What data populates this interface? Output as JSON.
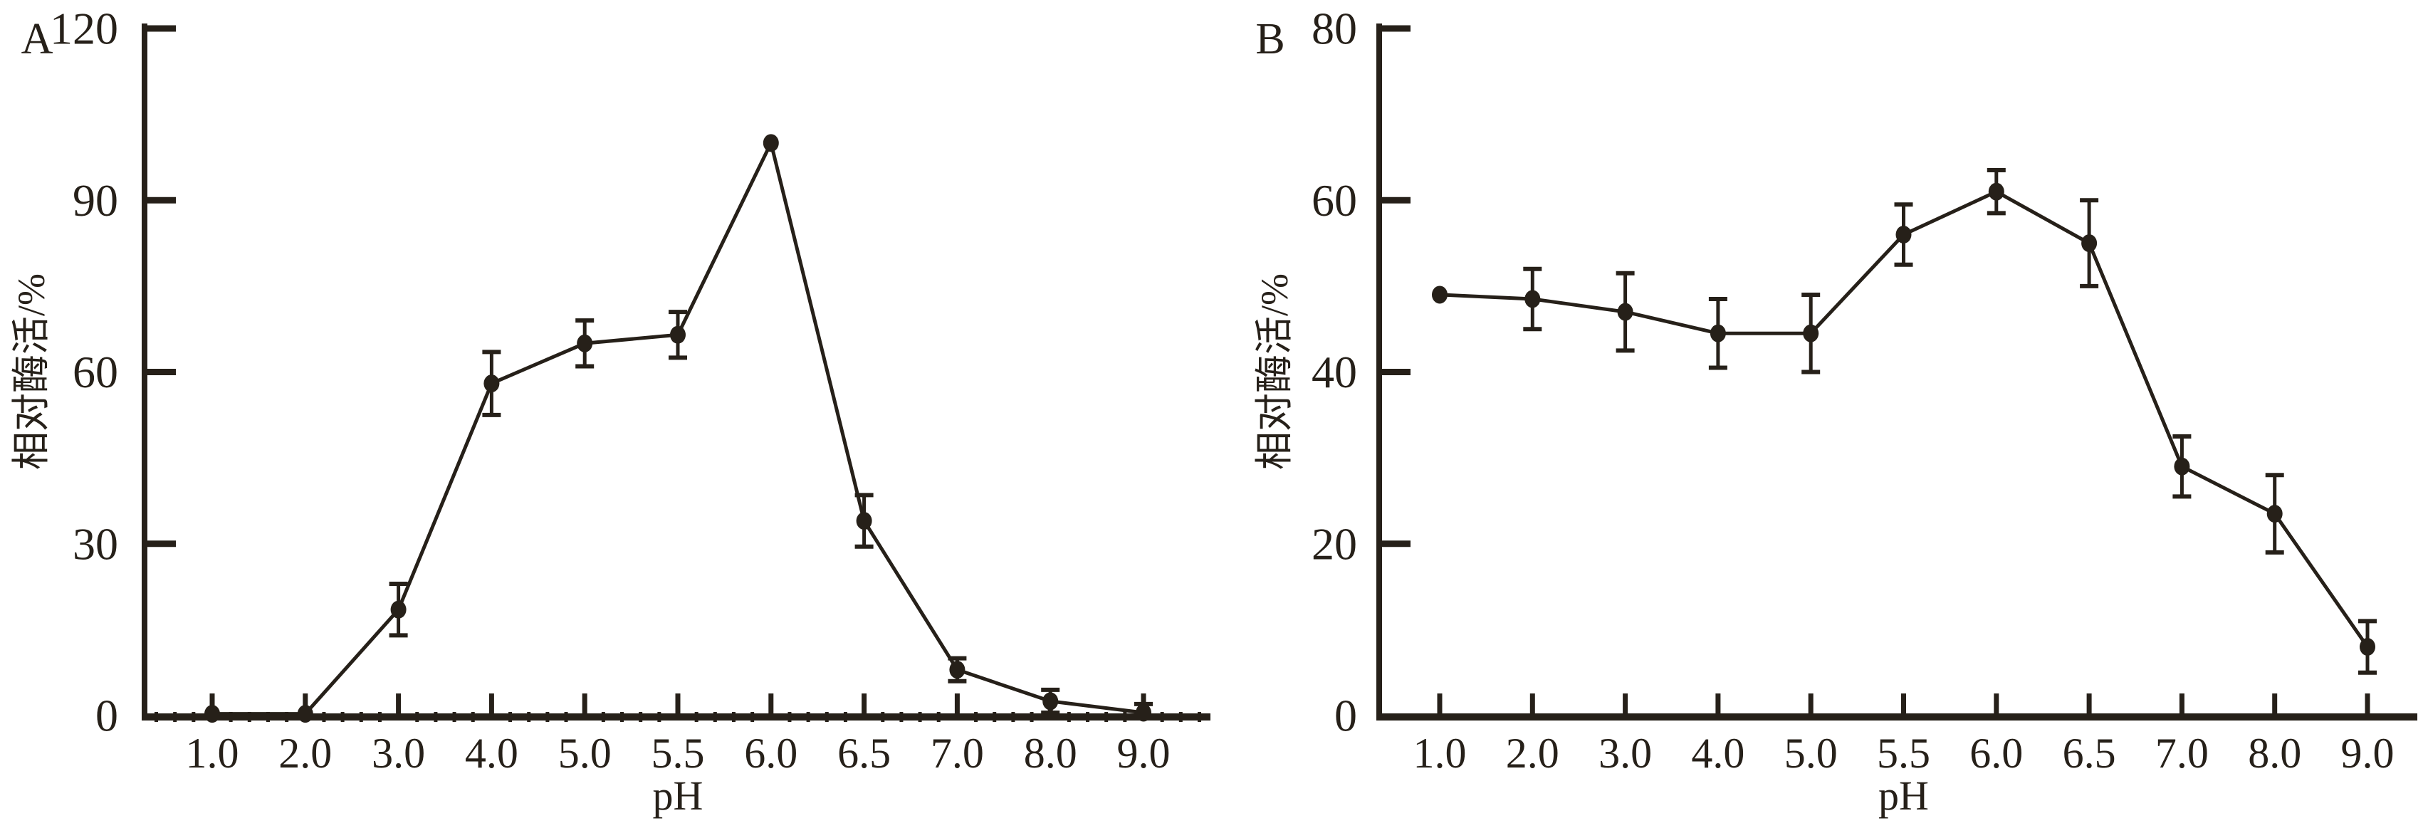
{
  "figure": {
    "background": "#ffffff",
    "ink_color": "#262019",
    "panel_labels": [
      "A",
      "B"
    ]
  },
  "chart_data": [
    {
      "type": "line",
      "panel_label": "A",
      "title": "",
      "xlabel": "pH",
      "ylabel": "相对酶活/%",
      "x_categories": [
        "1.0",
        "2.0",
        "3.0",
        "4.0",
        "5.0",
        "5.5",
        "6.0",
        "6.5",
        "7.0",
        "8.0",
        "9.0"
      ],
      "ylim": [
        0,
        120
      ],
      "yticks": [
        0,
        30,
        60,
        90,
        120
      ],
      "x_minor_ticks": true,
      "grid": false,
      "legend": "none",
      "marker": "filled-circle",
      "line_color": "#262019",
      "series": [
        {
          "name": "relative-enzyme-activity",
          "values": [
            0.3,
            0.3,
            18.5,
            58,
            65,
            66.5,
            100,
            34,
            8,
            2.5,
            0.5
          ],
          "errors": [
            0,
            0,
            4.5,
            5.5,
            4,
            4,
            0,
            4.5,
            2,
            2,
            1.5
          ]
        }
      ]
    },
    {
      "type": "line",
      "panel_label": "B",
      "title": "",
      "xlabel": "pH",
      "ylabel": "相对酶活/%",
      "x_categories": [
        "1.0",
        "2.0",
        "3.0",
        "4.0",
        "5.0",
        "5.5",
        "6.0",
        "6.5",
        "7.0",
        "8.0",
        "9.0"
      ],
      "ylim": [
        0,
        80
      ],
      "yticks": [
        0,
        20,
        40,
        60,
        80
      ],
      "x_minor_ticks": false,
      "grid": false,
      "legend": "none",
      "marker": "filled-circle",
      "line_color": "#262019",
      "series": [
        {
          "name": "relative-enzyme-activity",
          "values": [
            49,
            48.5,
            47,
            44.5,
            44.5,
            56,
            61,
            55,
            29,
            23.5,
            8
          ],
          "errors": [
            0,
            3.5,
            4.5,
            4,
            4.5,
            3.5,
            2.5,
            5,
            3.5,
            4.5,
            3
          ]
        }
      ]
    }
  ]
}
